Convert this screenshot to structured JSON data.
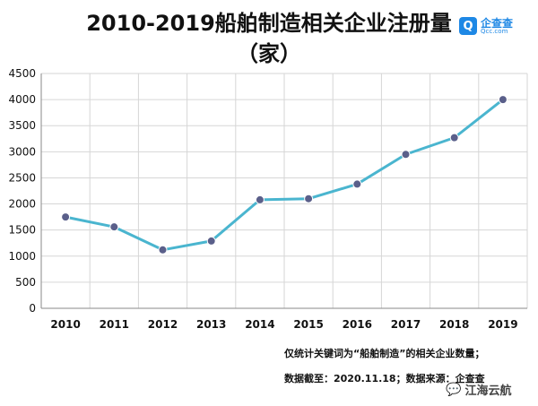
{
  "header": {
    "title_line1": "2010-2019船舶制造相关企业注册量",
    "title_line2": "（家）"
  },
  "logo": {
    "name": "企查查",
    "domain": "Qcc.com",
    "mark": "Q"
  },
  "notes": {
    "line1": "仅统计关键词为“船舶制造”的相关企业数量；",
    "line2": "数据截至：2020.11.18；数据来源：企查查"
  },
  "watermark": {
    "icon": "wechat-icon",
    "text": "江海云航"
  },
  "colors": {
    "line": "#4ab5cf",
    "marker": "#5a5f8a",
    "grid": "#d6d6d6",
    "axis": "#8a8a8a"
  },
  "chart_data": {
    "type": "line",
    "title": "2010-2019船舶制造相关企业注册量（家）",
    "categories": [
      "2010",
      "2011",
      "2012",
      "2013",
      "2014",
      "2015",
      "2016",
      "2017",
      "2018",
      "2019"
    ],
    "values": [
      1750,
      1560,
      1120,
      1290,
      2080,
      2100,
      2380,
      2950,
      3270,
      4000
    ],
    "ylim": [
      0,
      4500
    ],
    "yticks": [
      "0",
      "500",
      "1000",
      "1500",
      "2000",
      "2500",
      "3000",
      "3500",
      "4000",
      "4500"
    ],
    "grid": true,
    "legend": false
  }
}
